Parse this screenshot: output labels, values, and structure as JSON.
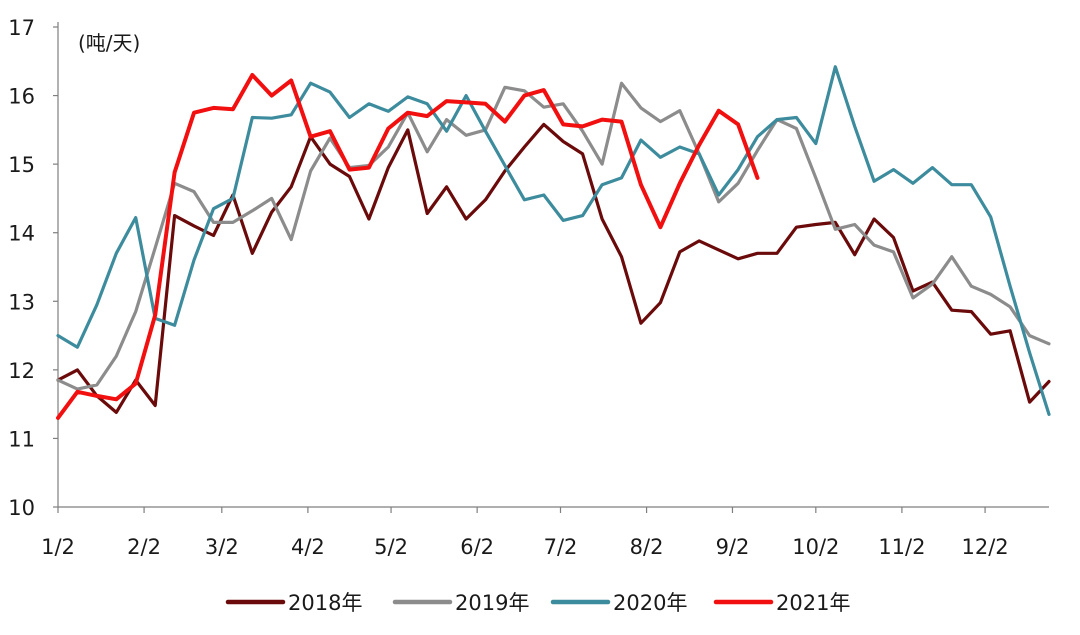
{
  "chart_data": {
    "type": "line",
    "unit_label": "(吨/天)",
    "ylim": [
      10,
      17
    ],
    "yticks": [
      10,
      11,
      12,
      13,
      14,
      15,
      16,
      17
    ],
    "xlim": [
      0,
      51
    ],
    "x_tick_labels": [
      "1/2",
      "2/2",
      "3/2",
      "4/2",
      "5/2",
      "6/2",
      "7/2",
      "8/2",
      "9/2",
      "10/2",
      "11/2",
      "12/2"
    ],
    "x_tick_weeks": [
      0,
      4.43,
      8.43,
      12.86,
      17.14,
      21.57,
      25.86,
      30.29,
      34.71,
      39.0,
      43.43,
      47.71
    ],
    "grid": false,
    "legend_position": "bottom",
    "series": [
      {
        "name": "2018年",
        "color": "#6b0a0a",
        "values": [
          11.85,
          12.0,
          11.62,
          11.38,
          11.85,
          11.48,
          14.25,
          14.1,
          13.96,
          14.55,
          13.7,
          14.3,
          14.67,
          15.4,
          15.0,
          14.82,
          14.2,
          14.95,
          15.5,
          14.28,
          14.67,
          14.2,
          14.48,
          14.9,
          15.25,
          15.58,
          15.33,
          15.15,
          14.2,
          13.65,
          12.68,
          12.98,
          13.72,
          13.88,
          13.75,
          13.62,
          13.7,
          13.7,
          14.08,
          14.12,
          14.15,
          13.68,
          14.2,
          13.93,
          13.15,
          13.28,
          12.87,
          12.85,
          12.52,
          12.57,
          11.53,
          11.83
        ]
      },
      {
        "name": "2019年",
        "color": "#8c8c8c",
        "values": [
          11.85,
          11.72,
          11.78,
          12.2,
          12.85,
          13.78,
          14.72,
          14.6,
          14.15,
          14.15,
          14.32,
          14.5,
          13.9,
          14.9,
          15.38,
          14.95,
          14.98,
          15.25,
          15.75,
          15.18,
          15.65,
          15.42,
          15.5,
          16.12,
          16.07,
          15.83,
          15.88,
          15.48,
          15.0,
          16.18,
          15.82,
          15.62,
          15.78,
          15.15,
          14.45,
          14.72,
          15.2,
          15.65,
          15.52,
          14.8,
          14.05,
          14.12,
          13.82,
          13.72,
          13.05,
          13.25,
          13.65,
          13.22,
          13.1,
          12.92,
          12.5,
          12.38
        ]
      },
      {
        "name": "2020年",
        "color": "#3d8c9e",
        "values": [
          12.5,
          12.33,
          12.95,
          13.7,
          14.22,
          12.75,
          12.65,
          13.6,
          14.35,
          14.5,
          15.68,
          15.67,
          15.72,
          16.18,
          16.05,
          15.68,
          15.88,
          15.77,
          15.98,
          15.88,
          15.48,
          16.0,
          15.48,
          14.98,
          14.48,
          14.55,
          14.18,
          14.25,
          14.7,
          14.8,
          15.35,
          15.1,
          15.25,
          15.15,
          14.55,
          14.92,
          15.4,
          15.65,
          15.68,
          15.3,
          16.42,
          15.55,
          14.75,
          14.92,
          14.72,
          14.95,
          14.7,
          14.7,
          14.23,
          13.22,
          12.25,
          11.35
        ]
      },
      {
        "name": "2021年",
        "color": "#f20f0f",
        "values": [
          11.3,
          11.68,
          11.62,
          11.57,
          11.8,
          12.8,
          14.88,
          15.75,
          15.82,
          15.8,
          16.3,
          16.0,
          16.22,
          15.4,
          15.48,
          14.92,
          14.95,
          15.52,
          15.75,
          15.7,
          15.92,
          15.9,
          15.88,
          15.62,
          16.0,
          16.08,
          15.58,
          15.55,
          15.65,
          15.62,
          14.7,
          14.08,
          14.72,
          15.28,
          15.78,
          15.58,
          14.8
        ]
      }
    ]
  }
}
